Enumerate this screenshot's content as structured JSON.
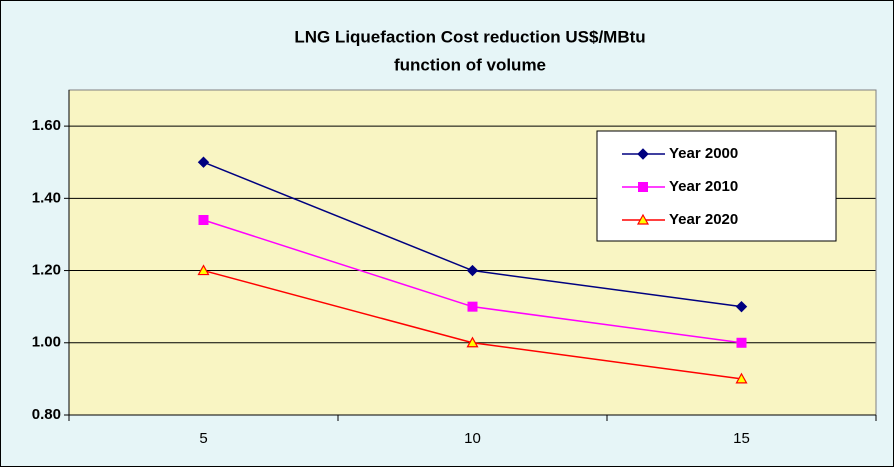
{
  "chart_data": {
    "type": "line",
    "title": [
      "LNG Liquefaction  Cost reduction US$/MBtu",
      "function of volume"
    ],
    "categories": [
      "5",
      "10",
      "15"
    ],
    "series": [
      {
        "name": "Year 2000",
        "color": "#000080",
        "marker": "diamond",
        "values": [
          1.5,
          1.2,
          1.1
        ]
      },
      {
        "name": "Year 2010",
        "color": "#ff00ff",
        "marker": "square",
        "values": [
          1.34,
          1.1,
          1.0
        ]
      },
      {
        "name": "Year 2020",
        "color": "#ff0000",
        "marker": "triangle",
        "values": [
          1.2,
          1.0,
          0.9
        ]
      }
    ],
    "ylim": [
      0.8,
      1.7
    ],
    "yticks": [
      {
        "value": 0.8,
        "label": "0.80"
      },
      {
        "value": 1.0,
        "label": "1.00"
      },
      {
        "value": 1.2,
        "label": "1.20"
      },
      {
        "value": 1.4,
        "label": "1.40"
      },
      {
        "value": 1.6,
        "label": "1.60"
      }
    ],
    "grid": true,
    "legend": "upper right"
  }
}
